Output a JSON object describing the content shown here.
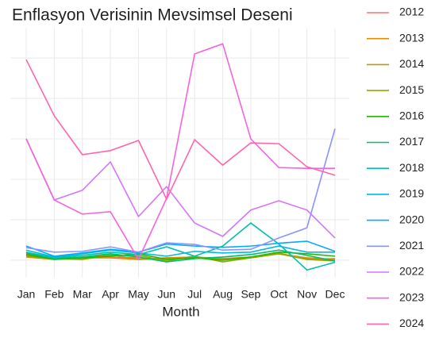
{
  "chart_data": {
    "type": "line",
    "title": "Enflasyon Verisinin Mevsimsel Deseni",
    "x_label": "Month",
    "categories": [
      "Jan",
      "Feb",
      "Mar",
      "Apr",
      "May",
      "Jun",
      "Jul",
      "Aug",
      "Sep",
      "Oct",
      "Nov",
      "Dec"
    ],
    "ylim": [
      -3.3,
      56.4
    ],
    "yticks": [
      0,
      10,
      20,
      30,
      40,
      50
    ],
    "grid": true,
    "legend": "right",
    "series": [
      {
        "name": "2012",
        "color": "#F8766D",
        "values": [
          1.6,
          0.4,
          0.8,
          0.8,
          0.6,
          0.2,
          0.6,
          0.4,
          0.8,
          1.8,
          0.2,
          0.4
        ]
      },
      {
        "name": "2013",
        "color": "#E18A00",
        "values": [
          0.8,
          0.2,
          0.6,
          0.6,
          0.2,
          0.6,
          0.8,
          0.4,
          0.6,
          1.6,
          0.6,
          0.2
        ]
      },
      {
        "name": "2014",
        "color": "#BE9C00",
        "values": [
          1.2,
          0.6,
          0.4,
          1.4,
          0.2,
          0.4,
          0.6,
          0.2,
          0.8,
          1.6,
          0.4,
          0.0
        ]
      },
      {
        "name": "2015",
        "color": "#8CAB00",
        "values": [
          1.0,
          0.4,
          0.2,
          1.2,
          1.2,
          -0.2,
          1.0,
          -0.4,
          0.6,
          1.6,
          0.2,
          -0.2
        ]
      },
      {
        "name": "2016",
        "color": "#24B700",
        "values": [
          1.4,
          0.2,
          0.6,
          1.0,
          1.6,
          0.2,
          0.6,
          0.0,
          0.8,
          2.0,
          1.6,
          1.0
        ]
      },
      {
        "name": "2017",
        "color": "#00BE70",
        "values": [
          1.8,
          0.4,
          0.8,
          1.6,
          0.8,
          -0.4,
          0.4,
          0.8,
          1.4,
          2.5,
          1.2,
          -0.2
        ]
      },
      {
        "name": "2018",
        "color": "#00C1AB",
        "values": [
          2.0,
          0.6,
          1.2,
          2.0,
          1.4,
          3.3,
          1.0,
          3.5,
          9.2,
          4.0,
          -2.4,
          -0.5
        ]
      },
      {
        "name": "2019",
        "color": "#00BBDA",
        "values": [
          2.5,
          0.8,
          1.6,
          2.5,
          1.8,
          1.0,
          2.2,
          1.8,
          2.0,
          3.5,
          2.0,
          2.0
        ]
      },
      {
        "name": "2020",
        "color": "#00ACFC",
        "values": [
          3.5,
          1.0,
          1.8,
          2.7,
          2.0,
          4.0,
          3.5,
          3.2,
          3.5,
          4.2,
          4.7,
          2.2
        ]
      },
      {
        "name": "2021",
        "color": "#8B93FF",
        "values": [
          3.1,
          2.0,
          2.2,
          3.3,
          2.0,
          4.3,
          3.9,
          2.5,
          2.7,
          5.5,
          8.0,
          32.5
        ]
      },
      {
        "name": "2022",
        "color": "#D575FE",
        "values": [
          30.0,
          14.9,
          17.3,
          24.3,
          10.8,
          18.2,
          9.2,
          5.9,
          12.4,
          14.7,
          12.4,
          5.5
        ]
      },
      {
        "name": "2023",
        "color": "#F962DD",
        "values": [
          30.0,
          14.9,
          11.4,
          12.0,
          0.2,
          15.3,
          51.0,
          53.5,
          30.0,
          22.9,
          22.7,
          22.7
        ]
      },
      {
        "name": "2024",
        "color": "#FF65AC",
        "values": [
          49.6,
          35.7,
          26.1,
          27.1,
          29.6,
          15.1,
          29.8,
          23.5,
          29.0,
          28.8,
          23.1,
          21.0
        ]
      }
    ]
  }
}
